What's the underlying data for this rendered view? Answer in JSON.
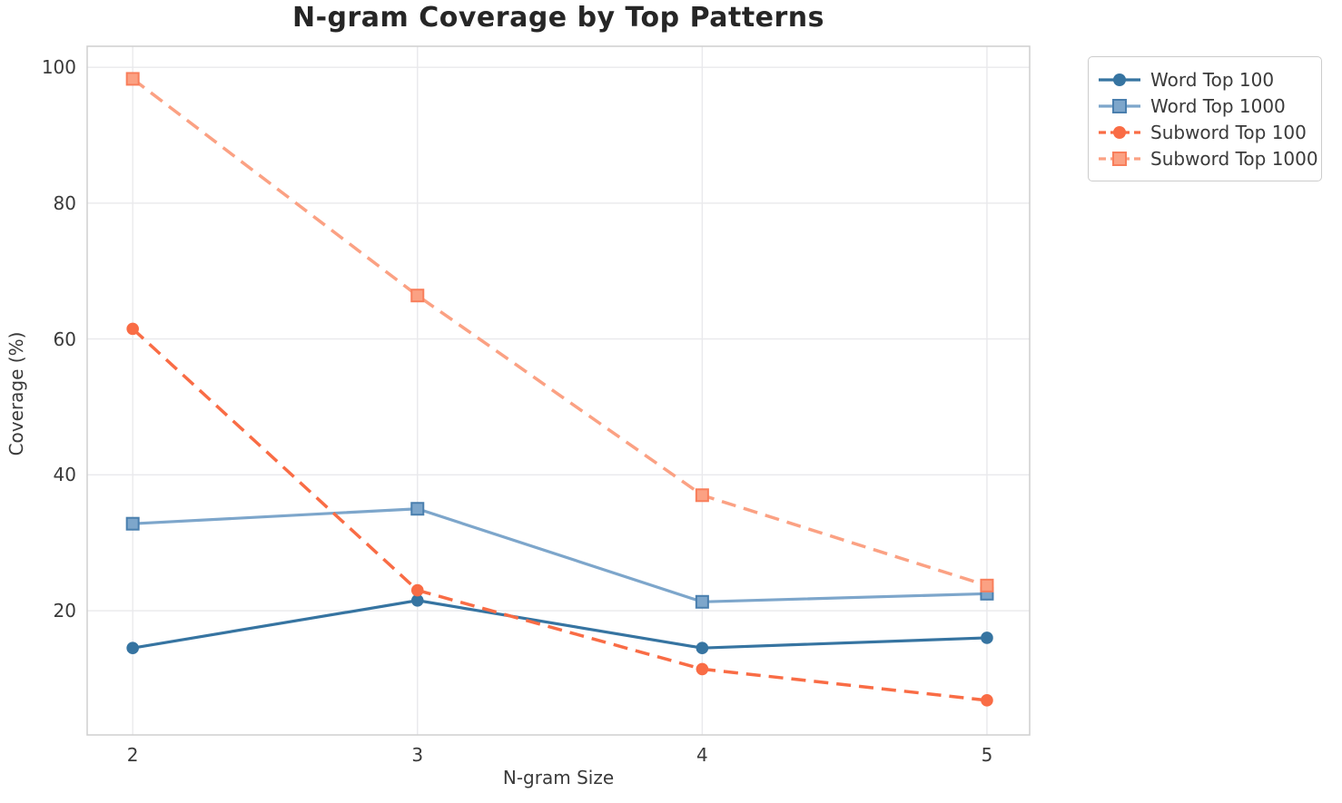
{
  "chart_data": {
    "type": "line",
    "title": "N-gram Coverage by Top Patterns",
    "xlabel": "N-gram Size",
    "ylabel": "Coverage (%)",
    "x": [
      2,
      3,
      4,
      5
    ],
    "xticks": [
      "2",
      "3",
      "4",
      "5"
    ],
    "yticks": [
      20,
      40,
      60,
      80,
      100
    ],
    "xlim": [
      1.84,
      5.15
    ],
    "ylim": [
      1.7,
      103.1
    ],
    "grid": true,
    "legend_position": "outside-upper-right",
    "colors": {
      "grid": "#e9e9ec",
      "spine": "#cfcfcf",
      "text": "#3a3a3a",
      "title": "#262626",
      "background": "#ffffff"
    },
    "series": [
      {
        "name": "Word Top 100",
        "values": [
          14.5,
          21.5,
          14.5,
          16.0
        ],
        "color": "#3674a1",
        "marker": "circle",
        "dash": false,
        "marker_edge": "#3674a1"
      },
      {
        "name": "Word Top 1000",
        "values": [
          32.8,
          35.0,
          21.3,
          22.5
        ],
        "color": "#7da6cb",
        "marker": "square",
        "dash": false,
        "marker_edge": "#4a7fae"
      },
      {
        "name": "Subword Top 100",
        "values": [
          61.5,
          23.0,
          11.4,
          6.8
        ],
        "color": "#f96c45",
        "marker": "circle",
        "dash": true,
        "marker_edge": "#f96c45"
      },
      {
        "name": "Subword Top 1000",
        "values": [
          98.3,
          66.4,
          37.0,
          23.7
        ],
        "color": "#fba183",
        "marker": "square",
        "dash": true,
        "marker_edge": "#f87e5b"
      }
    ]
  }
}
